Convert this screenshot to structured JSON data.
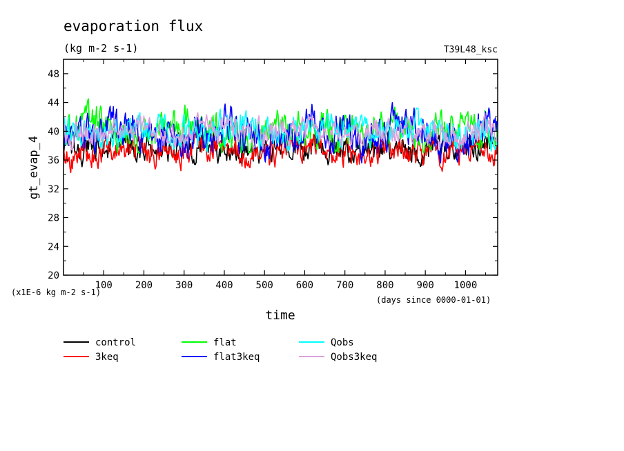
{
  "chart_data": {
    "type": "line",
    "title": "evaporation flux",
    "subtitle": "(kg m-2 s-1)",
    "run_label": "T39L48_ksc",
    "ylabel": "gt_evap_4",
    "y_scale_note": "(x1E-6 kg m-2 s-1)",
    "xlabel": "time",
    "x_units_note": "(days since 0000-01-01)",
    "xlim": [
      0,
      1080
    ],
    "ylim": [
      20,
      50
    ],
    "x_ticks": [
      100,
      200,
      300,
      400,
      500,
      600,
      700,
      800,
      900,
      1000
    ],
    "y_ticks": [
      20,
      24,
      28,
      32,
      36,
      40,
      44,
      48
    ],
    "series": [
      {
        "name": "control",
        "color": "#000000",
        "mean": 37.6,
        "amp": 1.3,
        "min": 33.9,
        "max": 40.2,
        "seed": 11
      },
      {
        "name": "3keq",
        "color": "#ff0000",
        "mean": 37.3,
        "amp": 1.4,
        "min": 33.9,
        "max": 39.6,
        "seed": 23
      },
      {
        "name": "flat",
        "color": "#00ff00",
        "mean": 40.2,
        "amp": 1.8,
        "min": 37.0,
        "max": 44.7,
        "seed": 37
      },
      {
        "name": "flat3keq",
        "color": "#0000ff",
        "mean": 39.9,
        "amp": 2.0,
        "min": 35.6,
        "max": 45.0,
        "seed": 41
      },
      {
        "name": "Qobs",
        "color": "#00ffff",
        "mean": 40.0,
        "amp": 1.5,
        "min": 35.8,
        "max": 43.2,
        "seed": 53
      },
      {
        "name": "Qobs3keq",
        "color": "#dda0dd",
        "mean": 39.9,
        "amp": 1.3,
        "min": 36.5,
        "max": 44.0,
        "seed": 67
      }
    ]
  }
}
